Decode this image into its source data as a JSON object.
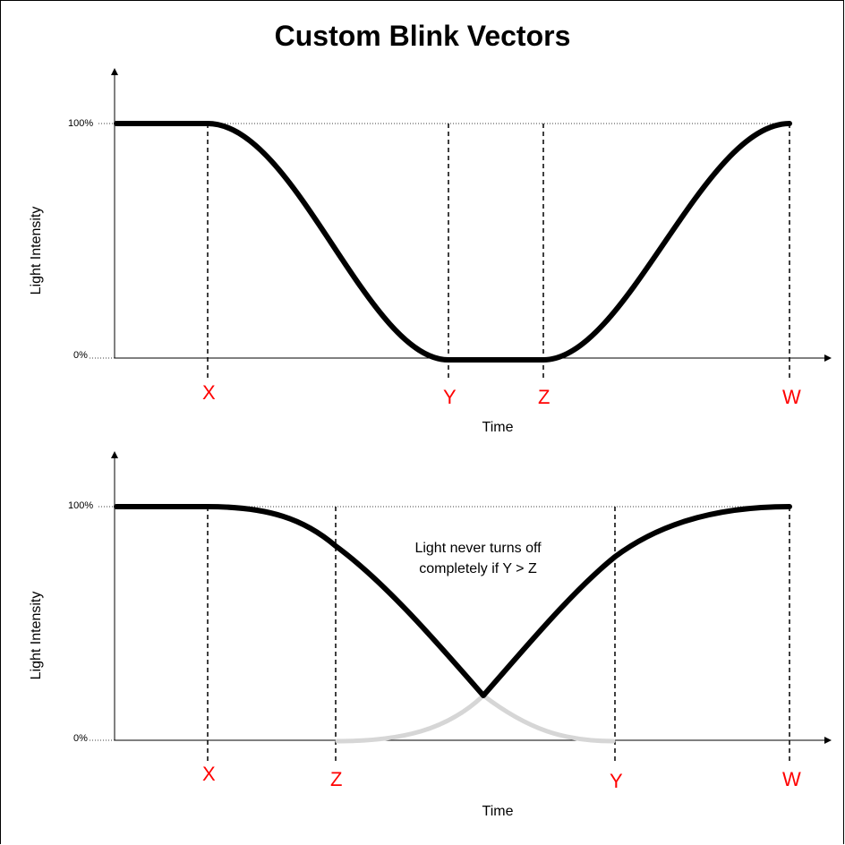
{
  "title": "Custom Blink Vectors",
  "colors": {
    "curve": "#000000",
    "ghost_curve": "#d6d6d6",
    "marker_label": "#ff0000"
  },
  "top_panel": {
    "ylabel": "Light Intensity",
    "xlabel": "Time",
    "y_ticks": [
      "100%",
      "0%"
    ],
    "markers": [
      "X",
      "Y",
      "Z",
      "W"
    ]
  },
  "bottom_panel": {
    "ylabel": "Light Intensity",
    "xlabel": "Time",
    "y_ticks": [
      "100%",
      "0%"
    ],
    "markers": [
      "X",
      "Z",
      "Y",
      "W"
    ],
    "note_line1": "Light never turns off",
    "note_line2": "completely if Y > Z"
  }
}
